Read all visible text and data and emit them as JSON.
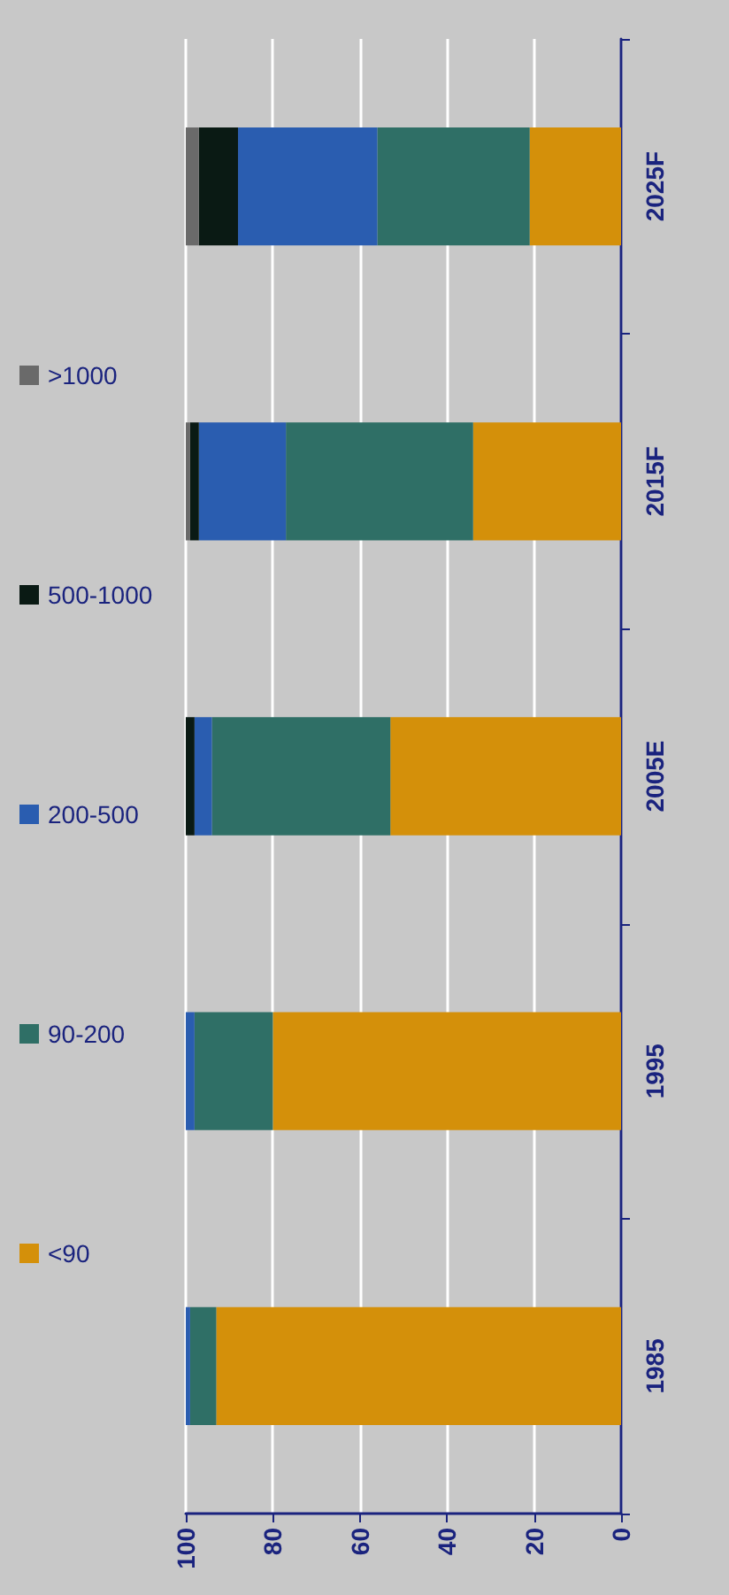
{
  "chart_data": {
    "type": "bar",
    "stacked": true,
    "orientation": "horizontal",
    "categories": [
      "2025F",
      "2015F",
      "2005E",
      "1995",
      "1985"
    ],
    "series": [
      {
        "name": "<90",
        "color": "#d4900a",
        "values": [
          21,
          34,
          53,
          80,
          93
        ]
      },
      {
        "name": "90-200",
        "color": "#2f6f66",
        "values": [
          35,
          43,
          41,
          18,
          6
        ]
      },
      {
        "name": "200-500",
        "color": "#2a5db0",
        "values": [
          32,
          20,
          4,
          2,
          1
        ]
      },
      {
        "name": "500-1000",
        "color": "#0a1a14",
        "values": [
          9,
          2,
          2,
          0,
          0
        ]
      },
      {
        "name": ">1000",
        "color": "#6a6a6a",
        "values": [
          3,
          1,
          0,
          0,
          0
        ]
      }
    ],
    "xlim": [
      100,
      0
    ],
    "xticks": [
      100,
      80,
      60,
      40,
      20,
      0
    ],
    "grid": "x",
    "legend": "left"
  }
}
